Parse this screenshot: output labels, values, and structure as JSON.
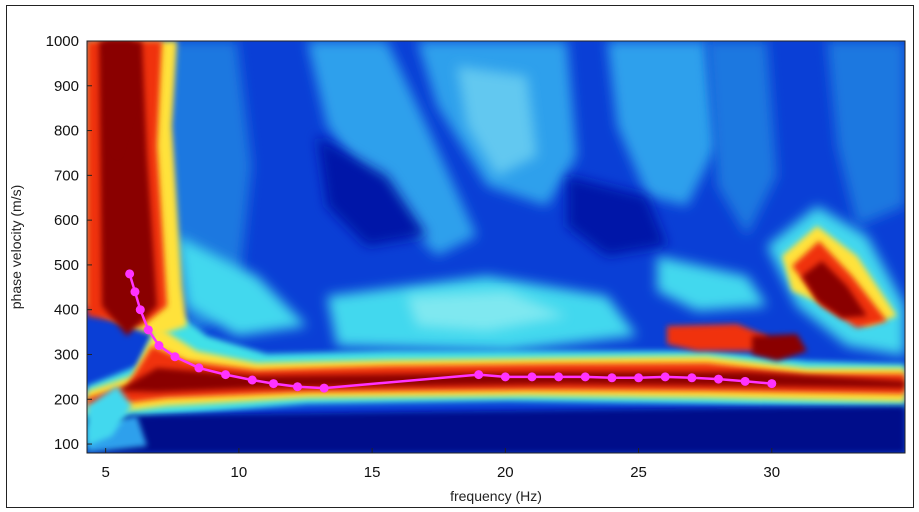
{
  "chart_data": {
    "type": "heatmap",
    "title": "",
    "xlabel": "frequency (Hz)",
    "ylabel": "phase velocity (m/s)",
    "xlim": [
      4.3,
      35
    ],
    "ylim": [
      80,
      1000
    ],
    "xticks": [
      5,
      10,
      15,
      20,
      25,
      30
    ],
    "yticks": [
      100,
      200,
      300,
      400,
      500,
      600,
      700,
      800,
      900,
      1000
    ],
    "colormap": "jet",
    "picked_points": {
      "color": "#ff33ff",
      "x": [
        5.9,
        6.1,
        6.3,
        6.6,
        7.0,
        7.6,
        8.5,
        9.5,
        10.5,
        11.3,
        12.2,
        13.2,
        19.0,
        20.0,
        21.0,
        22.0,
        23.0,
        24.0,
        25.0,
        26.0,
        27.0,
        28.0,
        29.0,
        30.0
      ],
      "y": [
        480,
        440,
        400,
        355,
        320,
        295,
        270,
        255,
        243,
        235,
        228,
        225,
        255,
        250,
        250,
        250,
        250,
        248,
        248,
        250,
        248,
        245,
        240,
        235
      ]
    }
  }
}
